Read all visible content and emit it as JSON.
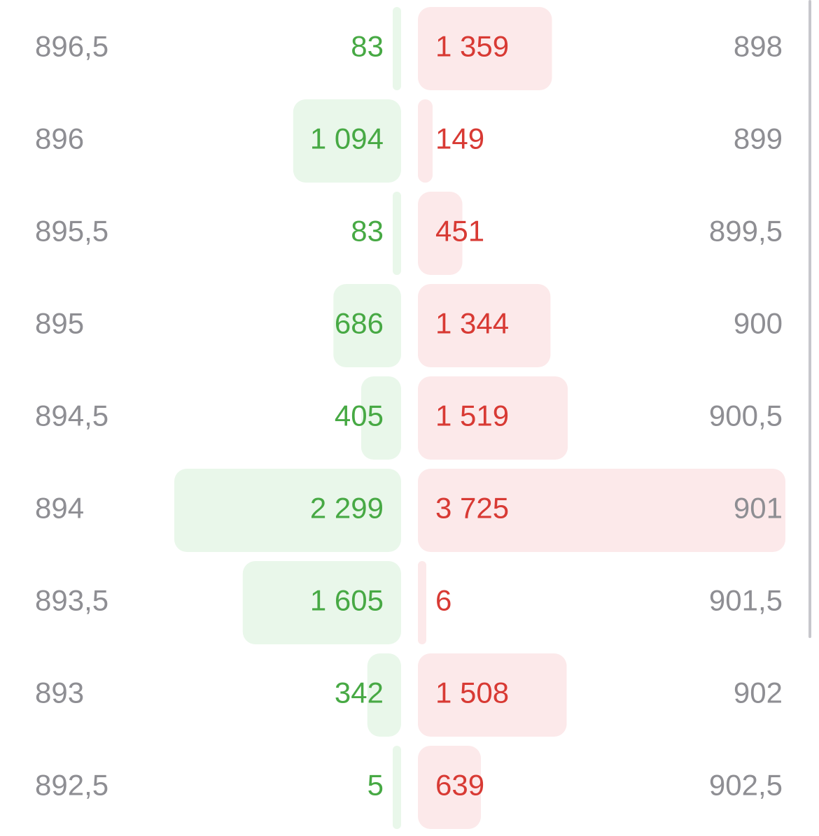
{
  "bids": {
    "prices": [
      "896,5",
      "896",
      "895,5",
      "895",
      "894,5",
      "894",
      "893,5",
      "893",
      "892,5"
    ],
    "volumes": [
      83,
      1094,
      83,
      686,
      405,
      2299,
      1605,
      342,
      5
    ],
    "volume_labels": [
      "83",
      "1 094",
      "83",
      "686",
      "405",
      "2 299",
      "1 605",
      "342",
      "5"
    ]
  },
  "asks": {
    "prices": [
      "898",
      "899",
      "899,5",
      "900",
      "900,5",
      "901",
      "901,5",
      "902",
      "902,5"
    ],
    "volumes": [
      1359,
      149,
      451,
      1344,
      1519,
      3725,
      6,
      1508,
      639
    ],
    "volume_labels": [
      "1 359",
      "149",
      "451",
      "1 344",
      "1 519",
      "3 725",
      "6",
      "1 508",
      "639"
    ]
  }
}
